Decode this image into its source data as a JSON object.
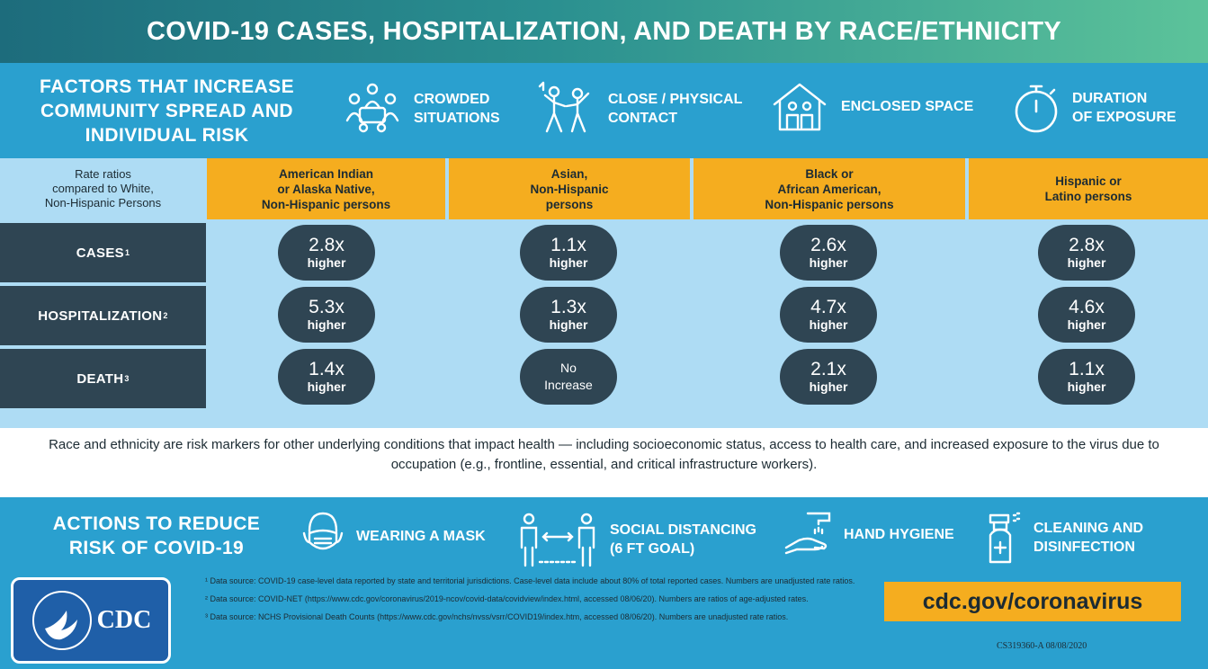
{
  "title": "COVID-19 CASES, HOSPITALIZATION, AND DEATH BY RACE/ETHNICITY",
  "factors": {
    "heading": "FACTORS THAT INCREASE COMMUNITY SPREAD AND INDIVIDUAL RISK",
    "items": [
      {
        "label": "CROWDED\nSITUATIONS",
        "icon": "crowd-icon"
      },
      {
        "label": "CLOSE / PHYSICAL\nCONTACT",
        "icon": "dancing-people-icon"
      },
      {
        "label": "ENCLOSED SPACE",
        "icon": "house-icon"
      },
      {
        "label": "DURATION\nOF EXPOSURE",
        "icon": "stopwatch-icon"
      }
    ]
  },
  "table": {
    "rate_header": "Rate ratios\ncompared to White,\nNon-Hispanic Persons",
    "groups": [
      "American Indian\nor Alaska Native,\nNon-Hispanic persons",
      "Asian,\nNon-Hispanic\npersons",
      "Black or\nAfrican American,\nNon-Hispanic persons",
      "Hispanic or\nLatino persons"
    ],
    "rows": [
      {
        "label": "CASES",
        "note": "1",
        "values": [
          {
            "value": "2.8x",
            "sub": "higher"
          },
          {
            "value": "1.1x",
            "sub": "higher"
          },
          {
            "value": "2.6x",
            "sub": "higher"
          },
          {
            "value": "2.8x",
            "sub": "higher"
          }
        ]
      },
      {
        "label": "HOSPITALIZATION",
        "note": "2",
        "values": [
          {
            "value": "5.3x",
            "sub": "higher"
          },
          {
            "value": "1.3x",
            "sub": "higher"
          },
          {
            "value": "4.7x",
            "sub": "higher"
          },
          {
            "value": "4.6x",
            "sub": "higher"
          }
        ]
      },
      {
        "label": "DEATH",
        "note": "3",
        "values": [
          {
            "value": "1.4x",
            "sub": "higher"
          },
          {
            "value": "No\nIncrease",
            "sub": ""
          },
          {
            "value": "2.1x",
            "sub": "higher"
          },
          {
            "value": "1.1x",
            "sub": "higher"
          }
        ]
      }
    ]
  },
  "note": "Race and ethnicity are risk markers for other underlying conditions that impact health — including socioeconomic status, access to health care, and increased exposure to the virus due to occupation (e.g., frontline, essential, and critical infrastructure workers).",
  "actions": {
    "heading": "ACTIONS TO REDUCE\nRISK OF COVID-19",
    "items": [
      {
        "label": "WEARING A MASK",
        "icon": "mask-icon"
      },
      {
        "label": "SOCIAL DISTANCING\n(6 FT GOAL)",
        "icon": "social-distancing-icon"
      },
      {
        "label": "HAND HYGIENE",
        "icon": "hand-washing-icon"
      },
      {
        "label": "CLEANING AND\nDISINFECTION",
        "icon": "spray-bottle-icon"
      }
    ]
  },
  "logo": {
    "text": "CDC"
  },
  "footnotes": [
    "¹ Data source: COVID-19 case-level data reported by state and territorial jurisdictions. Case-level data include about 80% of total reported cases. Numbers are unadjusted rate ratios.",
    "² Data source: COVID-NET (https://www.cdc.gov/coronavirus/2019-ncov/covid-data/covidview/index.html, accessed 08/06/20). Numbers are ratios of age-adjusted rates.",
    "³ Data source: NCHS Provisional Death Counts (https://www.cdc.gov/nchs/nvss/vsrr/COVID19/index.htm, accessed 08/06/20). Numbers are unadjusted rate ratios."
  ],
  "website": "cdc.gov/coronavirus",
  "publication_code": "CS319360-A 08/08/2020",
  "colors": {
    "dark_pill": "#2f4553",
    "accent_orange": "#f5ad1f",
    "band_blue": "#2aa0cf",
    "table_bg": "#aedcf4"
  }
}
